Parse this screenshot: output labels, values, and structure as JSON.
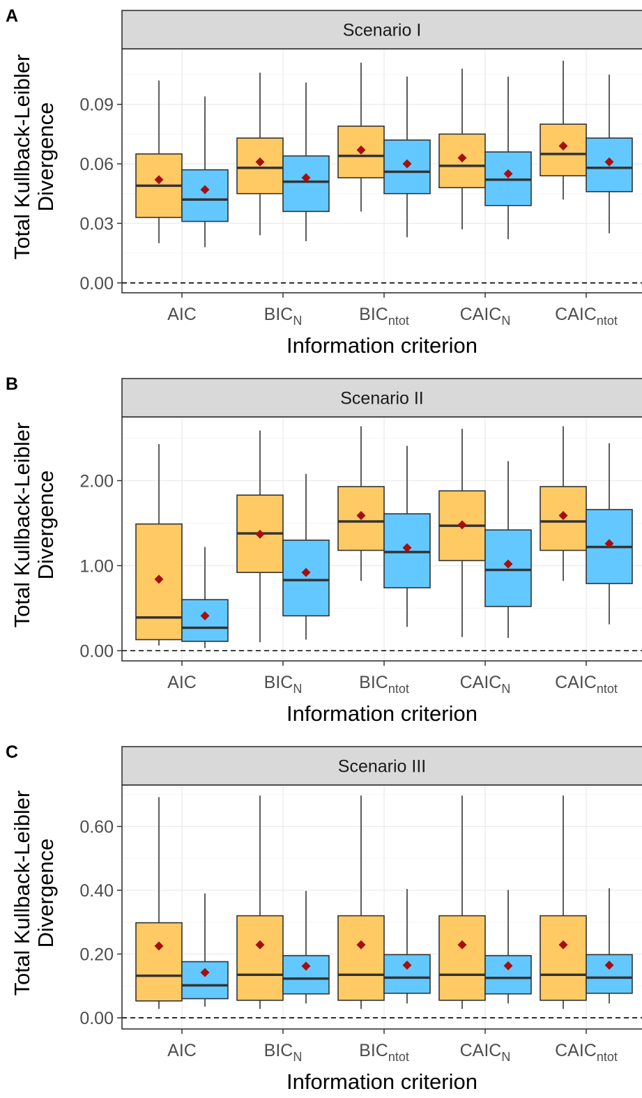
{
  "colors": {
    "orange_fill": "#FFCA63",
    "blue_fill": "#63C8FF",
    "box_stroke": "#333333",
    "mean_marker": "#A50F0F",
    "strip_fill": "#D9D9D9",
    "grid_major": "#EBEBEB",
    "grid_minor": "#F5F5F5",
    "axis_text": "#4D4D4D"
  },
  "xlabel": "Information criterion",
  "ylabel_lines": [
    "Total Kullback-Leibler",
    "Divergence"
  ],
  "categories": [
    {
      "base": "AIC",
      "sub": ""
    },
    {
      "base": "BIC",
      "sub": "N"
    },
    {
      "base": "BIC",
      "sub": "ntot"
    },
    {
      "base": "CAIC",
      "sub": "N"
    },
    {
      "base": "CAIC",
      "sub": "ntot"
    }
  ],
  "chart_data": [
    {
      "type": "box",
      "panel_tag": "A",
      "strip_title": "Scenario I",
      "ylim": [
        -0.005,
        0.118
      ],
      "yticks": [
        0.0,
        0.03,
        0.06,
        0.09
      ],
      "ytick_labels": [
        "0.00",
        "0.03",
        "0.06",
        "0.09"
      ],
      "reference_line": 0.0,
      "series": [
        {
          "color": "orange",
          "boxes": [
            {
              "low": 0.02,
              "q1": 0.033,
              "median": 0.049,
              "q3": 0.065,
              "high": 0.102,
              "mean": 0.052
            },
            {
              "low": 0.024,
              "q1": 0.045,
              "median": 0.058,
              "q3": 0.073,
              "high": 0.106,
              "mean": 0.061
            },
            {
              "low": 0.036,
              "q1": 0.053,
              "median": 0.064,
              "q3": 0.079,
              "high": 0.111,
              "mean": 0.067
            },
            {
              "low": 0.027,
              "q1": 0.048,
              "median": 0.059,
              "q3": 0.075,
              "high": 0.108,
              "mean": 0.063
            },
            {
              "low": 0.042,
              "q1": 0.054,
              "median": 0.065,
              "q3": 0.08,
              "high": 0.112,
              "mean": 0.069
            }
          ]
        },
        {
          "color": "blue",
          "boxes": [
            {
              "low": 0.018,
              "q1": 0.031,
              "median": 0.042,
              "q3": 0.057,
              "high": 0.094,
              "mean": 0.047
            },
            {
              "low": 0.021,
              "q1": 0.036,
              "median": 0.051,
              "q3": 0.064,
              "high": 0.101,
              "mean": 0.053
            },
            {
              "low": 0.023,
              "q1": 0.045,
              "median": 0.056,
              "q3": 0.072,
              "high": 0.104,
              "mean": 0.06
            },
            {
              "low": 0.022,
              "q1": 0.039,
              "median": 0.052,
              "q3": 0.066,
              "high": 0.104,
              "mean": 0.055
            },
            {
              "low": 0.025,
              "q1": 0.046,
              "median": 0.058,
              "q3": 0.073,
              "high": 0.105,
              "mean": 0.061
            }
          ]
        }
      ]
    },
    {
      "type": "box",
      "panel_tag": "B",
      "strip_title": "Scenario II",
      "ylim": [
        -0.12,
        2.75
      ],
      "yticks": [
        0.0,
        1.0,
        2.0
      ],
      "ytick_labels": [
        "0.00",
        "1.00",
        "2.00"
      ],
      "reference_line": 0.0,
      "series": [
        {
          "color": "orange",
          "boxes": [
            {
              "low": 0.06,
              "q1": 0.13,
              "median": 0.39,
              "q3": 1.49,
              "high": 2.43,
              "mean": 0.84
            },
            {
              "low": 0.1,
              "q1": 0.92,
              "median": 1.38,
              "q3": 1.83,
              "high": 2.59,
              "mean": 1.37
            },
            {
              "low": 0.82,
              "q1": 1.18,
              "median": 1.52,
              "q3": 1.93,
              "high": 2.64,
              "mean": 1.59
            },
            {
              "low": 0.16,
              "q1": 1.06,
              "median": 1.47,
              "q3": 1.88,
              "high": 2.61,
              "mean": 1.48
            },
            {
              "low": 0.82,
              "q1": 1.18,
              "median": 1.52,
              "q3": 1.93,
              "high": 2.64,
              "mean": 1.59
            }
          ]
        },
        {
          "color": "blue",
          "boxes": [
            {
              "low": 0.03,
              "q1": 0.11,
              "median": 0.27,
              "q3": 0.6,
              "high": 1.22,
              "mean": 0.41
            },
            {
              "low": 0.13,
              "q1": 0.41,
              "median": 0.83,
              "q3": 1.3,
              "high": 2.08,
              "mean": 0.92
            },
            {
              "low": 0.28,
              "q1": 0.74,
              "median": 1.16,
              "q3": 1.61,
              "high": 2.41,
              "mean": 1.21
            },
            {
              "low": 0.15,
              "q1": 0.52,
              "median": 0.95,
              "q3": 1.42,
              "high": 2.23,
              "mean": 1.02
            },
            {
              "low": 0.31,
              "q1": 0.79,
              "median": 1.22,
              "q3": 1.66,
              "high": 2.44,
              "mean": 1.26
            }
          ]
        }
      ]
    },
    {
      "type": "box",
      "panel_tag": "C",
      "strip_title": "Scenario III",
      "ylim": [
        -0.035,
        0.73
      ],
      "yticks": [
        0.0,
        0.2,
        0.4,
        0.6
      ],
      "ytick_labels": [
        "0.00",
        "0.20",
        "0.40",
        "0.60"
      ],
      "reference_line": 0.0,
      "series": [
        {
          "color": "orange",
          "boxes": [
            {
              "low": 0.028,
              "q1": 0.053,
              "median": 0.132,
              "q3": 0.298,
              "high": 0.692,
              "mean": 0.225
            },
            {
              "low": 0.028,
              "q1": 0.055,
              "median": 0.135,
              "q3": 0.32,
              "high": 0.697,
              "mean": 0.229
            },
            {
              "low": 0.028,
              "q1": 0.055,
              "median": 0.135,
              "q3": 0.32,
              "high": 0.697,
              "mean": 0.229
            },
            {
              "low": 0.028,
              "q1": 0.055,
              "median": 0.135,
              "q3": 0.32,
              "high": 0.697,
              "mean": 0.229
            },
            {
              "low": 0.028,
              "q1": 0.055,
              "median": 0.135,
              "q3": 0.32,
              "high": 0.697,
              "mean": 0.229
            }
          ]
        },
        {
          "color": "blue",
          "boxes": [
            {
              "low": 0.035,
              "q1": 0.06,
              "median": 0.102,
              "q3": 0.176,
              "high": 0.39,
              "mean": 0.142
            },
            {
              "low": 0.045,
              "q1": 0.075,
              "median": 0.123,
              "q3": 0.195,
              "high": 0.398,
              "mean": 0.162
            },
            {
              "low": 0.045,
              "q1": 0.077,
              "median": 0.126,
              "q3": 0.198,
              "high": 0.404,
              "mean": 0.165
            },
            {
              "low": 0.045,
              "q1": 0.075,
              "median": 0.125,
              "q3": 0.195,
              "high": 0.401,
              "mean": 0.163
            },
            {
              "low": 0.045,
              "q1": 0.077,
              "median": 0.126,
              "q3": 0.198,
              "high": 0.406,
              "mean": 0.165
            }
          ]
        }
      ]
    }
  ]
}
